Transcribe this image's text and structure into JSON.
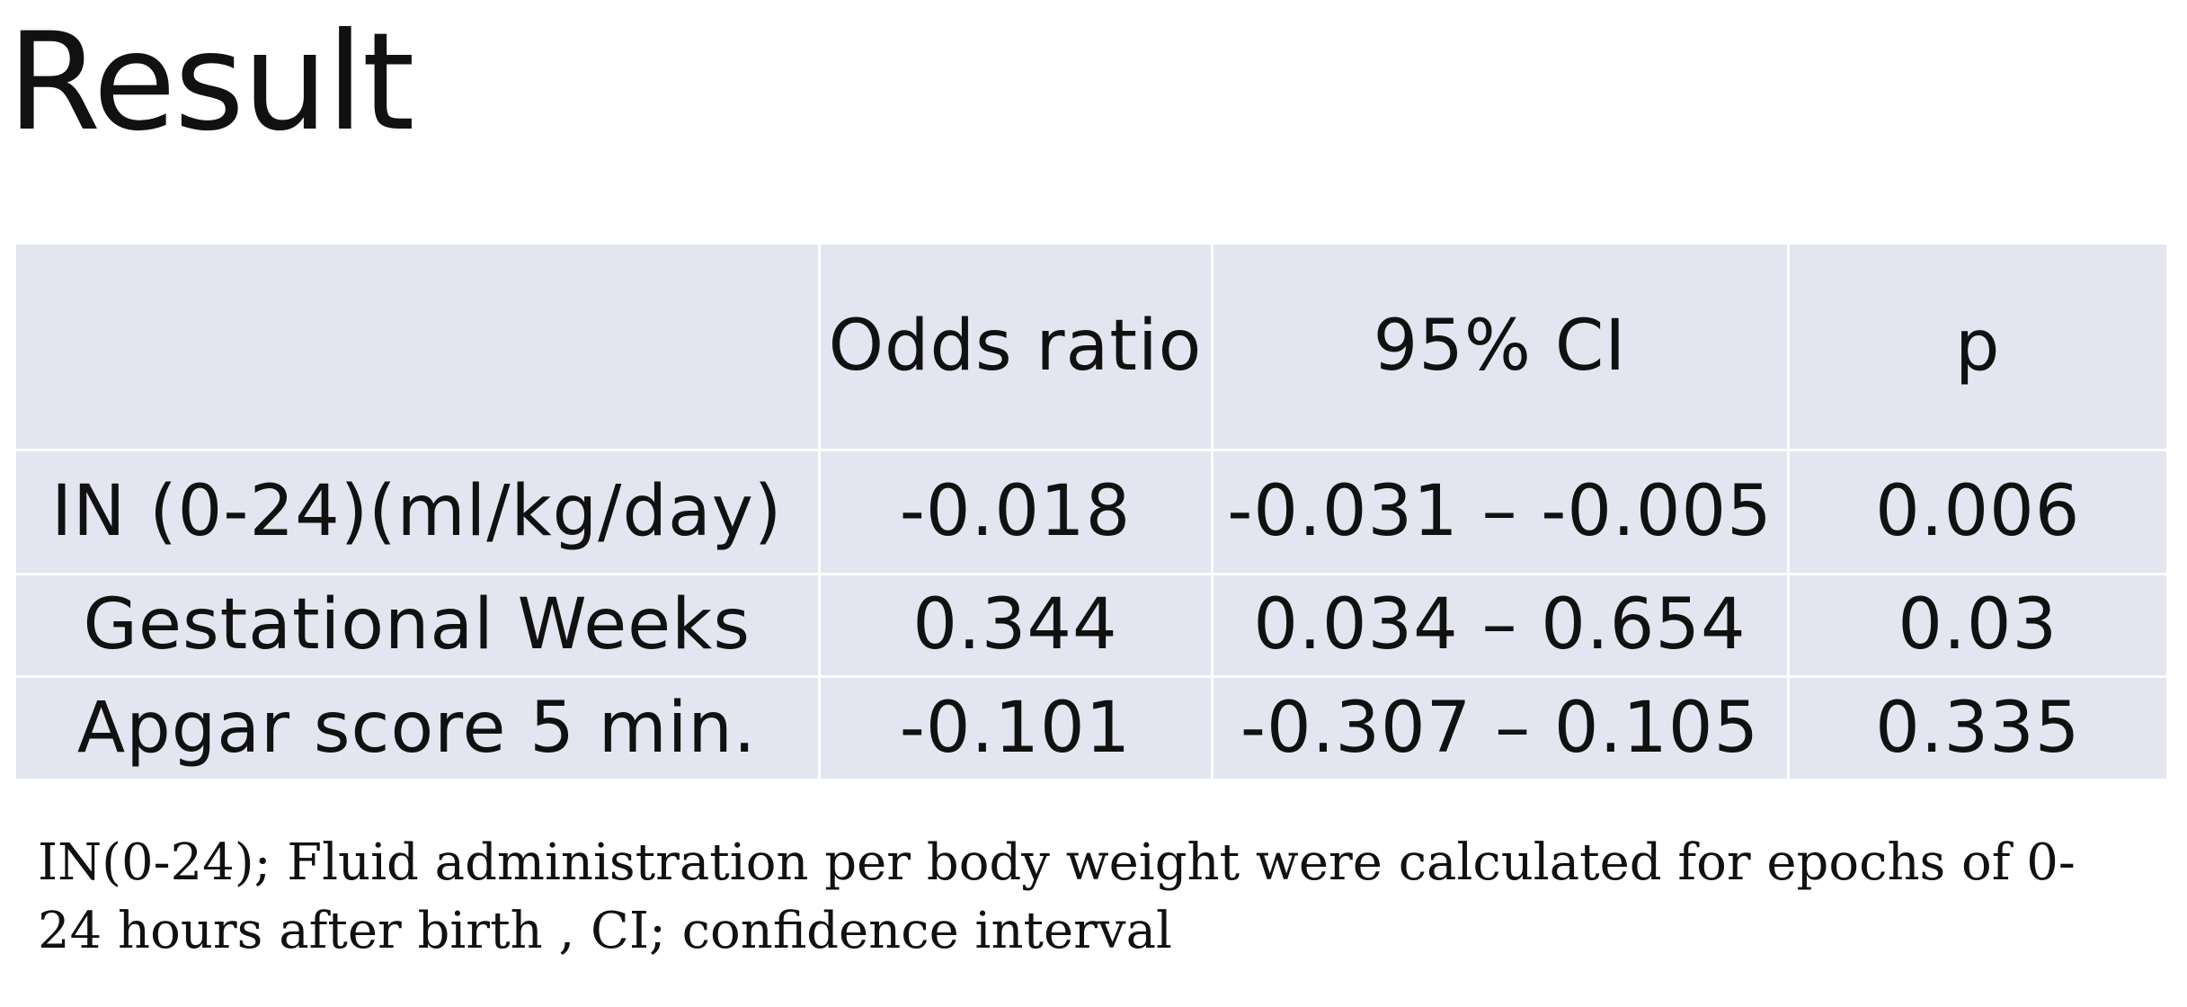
{
  "title": "Result",
  "table": {
    "headers": {
      "label": "",
      "odds_ratio": "Odds ratio",
      "ci": "95% CI",
      "p": "p"
    },
    "rows": [
      {
        "label": "IN (0-24)(ml/kg/day)",
        "odds_ratio": "-0.018",
        "ci": "-0.031 – -0.005",
        "p": "0.006"
      },
      {
        "label": "Gestational Weeks",
        "odds_ratio": "0.344",
        "ci": "0.034 – 0.654",
        "p": "0.03"
      },
      {
        "label": "Apgar score 5 min.",
        "odds_ratio": "-0.101",
        "ci": "-0.307 – 0.105",
        "p": "0.335"
      }
    ]
  },
  "footnote": {
    "line1": "IN(0-24); Fluid administration per body weight were calculated for epochs of 0-",
    "line2": "24 hours after birth , CI; confidence interval"
  }
}
